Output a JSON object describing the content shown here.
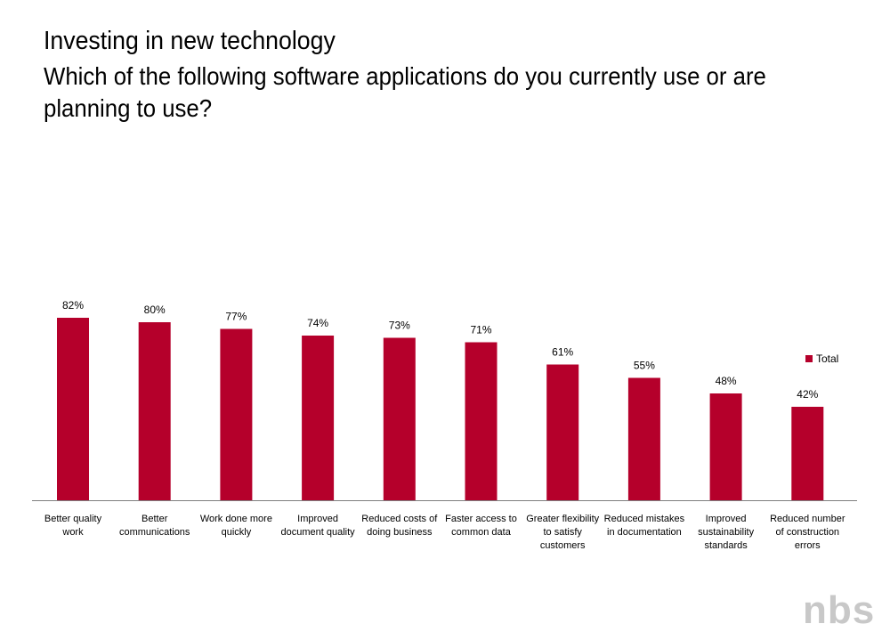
{
  "header": {
    "title": "Investing in new technology",
    "subtitle": "Which of the following software applications do you currently use or are planning to use?"
  },
  "colors": {
    "bar": "#b5002b",
    "axis": "#7f7f7f",
    "logo": "#c8c8c8"
  },
  "logo": {
    "text": "nbs",
    "icon": "nbs-logo"
  },
  "chart_data": {
    "type": "bar",
    "categories": [
      [
        "Better quality",
        "work"
      ],
      [
        "Better",
        "communications"
      ],
      [
        "Work done more",
        "quickly"
      ],
      [
        "Improved",
        "document quality"
      ],
      [
        "Reduced costs of",
        "doing business"
      ],
      [
        "Faster access to",
        "common data"
      ],
      [
        "Greater flexibility",
        "to satisfy",
        "customers"
      ],
      [
        "Reduced mistakes",
        "in documentation"
      ],
      [
        "Improved",
        "sustainability",
        "standards"
      ],
      [
        "Reduced number",
        "of construction",
        "errors"
      ]
    ],
    "series": [
      {
        "name": "Total",
        "values": [
          82,
          80,
          77,
          74,
          73,
          71,
          61,
          55,
          48,
          42
        ],
        "labels": [
          "82%",
          "80%",
          "77%",
          "74%",
          "73%",
          "71%",
          "61%",
          "55%",
          "48%",
          "42%"
        ]
      }
    ],
    "ylim": [
      0,
      100
    ],
    "grid": false,
    "legend": "right"
  }
}
